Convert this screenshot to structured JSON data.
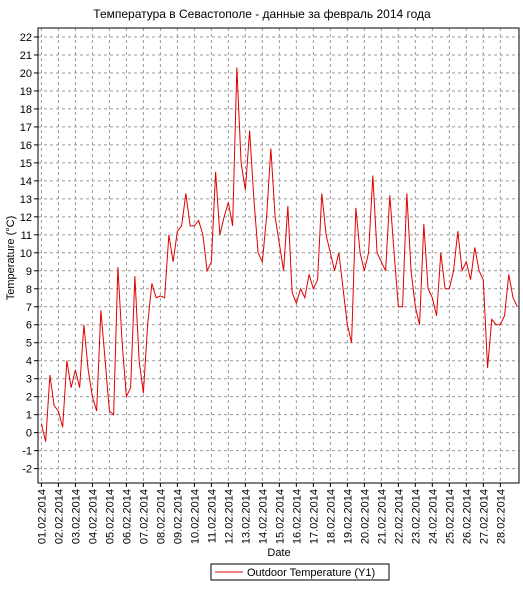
{
  "chart_data": {
    "type": "line",
    "title": "Температура в Севастополе - данные за февраль 2014 года",
    "x_label": "Date",
    "y_label": "Temperature (°C)",
    "x": [
      0,
      0.25,
      0.5,
      0.75,
      1,
      1.25,
      1.5,
      1.75,
      2,
      2.25,
      2.5,
      2.75,
      3,
      3.25,
      3.5,
      3.75,
      4,
      4.25,
      4.5,
      4.75,
      5,
      5.25,
      5.5,
      5.75,
      6,
      6.25,
      6.5,
      6.75,
      7,
      7.25,
      7.5,
      7.75,
      8,
      8.25,
      8.5,
      8.75,
      9,
      9.25,
      9.5,
      9.75,
      10,
      10.25,
      10.5,
      10.75,
      11,
      11.25,
      11.5,
      11.75,
      12,
      12.25,
      12.5,
      12.75,
      13,
      13.25,
      13.5,
      13.75,
      14,
      14.25,
      14.5,
      14.75,
      15,
      15.25,
      15.5,
      15.75,
      16,
      16.25,
      16.5,
      16.75,
      17,
      17.25,
      17.5,
      17.75,
      18,
      18.25,
      18.5,
      18.75,
      19,
      19.25,
      19.5,
      19.75,
      20,
      20.25,
      20.5,
      20.75,
      21,
      21.25,
      21.5,
      21.75,
      22,
      22.25,
      22.5,
      22.75,
      23,
      23.25,
      23.5,
      23.75,
      24,
      24.25,
      24.5,
      24.75,
      25,
      25.25,
      25.5,
      25.75,
      26,
      26.25,
      26.5,
      26.75,
      27,
      27.25,
      27.5,
      27.75,
      28
    ],
    "series": [
      {
        "name": "Outdoor Temperature (Y1)",
        "color": "#e00000",
        "values": [
          0.5,
          -0.5,
          3.2,
          1.5,
          1.2,
          0.3,
          4,
          2.5,
          3.5,
          2.5,
          6,
          3.5,
          2,
          1.2,
          6.8,
          4,
          1.2,
          1,
          9.2,
          5,
          2,
          2.5,
          8.7,
          4,
          2.2,
          6,
          8.3,
          7.5,
          7.6,
          7.5,
          11,
          9.5,
          11.2,
          11.5,
          13.3,
          11.5,
          11.5,
          11.8,
          11,
          9,
          9.5,
          14.5,
          11,
          12,
          12.8,
          11.5,
          20.3,
          15,
          13.5,
          16.8,
          13,
          10,
          9.5,
          12,
          15.8,
          12,
          10.5,
          9,
          12.6,
          7.8,
          7.2,
          8,
          7.5,
          8.8,
          8,
          8.5,
          13.3,
          11,
          10,
          9,
          10,
          8,
          6,
          5,
          12.5,
          10,
          9,
          10,
          14.3,
          10,
          9.5,
          9,
          13.2,
          10,
          7,
          7,
          13.3,
          9,
          7,
          6,
          11.6,
          8,
          7.5,
          6.5,
          10,
          8,
          8,
          9,
          11.2,
          9,
          9.5,
          8.5,
          10.3,
          9,
          8.5,
          3.6,
          6.3,
          6,
          6,
          6.5,
          8.8,
          7.5,
          7
        ]
      }
    ],
    "xlim": [
      -0.2,
      28.1
    ],
    "ylim": [
      -2.8,
      22.5
    ],
    "yticks": [
      -2,
      -1,
      0,
      1,
      2,
      3,
      4,
      5,
      6,
      7,
      8,
      9,
      10,
      11,
      12,
      13,
      14,
      15,
      16,
      17,
      18,
      19,
      20,
      21,
      22
    ],
    "xticks": [
      {
        "value": 0,
        "label": "01.02.2014"
      },
      {
        "value": 1,
        "label": "02.02.2014"
      },
      {
        "value": 2,
        "label": "03.02.2014"
      },
      {
        "value": 3,
        "label": "04.02.2014"
      },
      {
        "value": 4,
        "label": "05.02.2014"
      },
      {
        "value": 5,
        "label": "06.02.2014"
      },
      {
        "value": 6,
        "label": "07.02.2014"
      },
      {
        "value": 7,
        "label": "08.02.2014"
      },
      {
        "value": 8,
        "label": "09.02.2014"
      },
      {
        "value": 9,
        "label": "10.02.2014"
      },
      {
        "value": 10,
        "label": "11.02.2014"
      },
      {
        "value": 11,
        "label": "12.02.2014"
      },
      {
        "value": 12,
        "label": "13.02.2014"
      },
      {
        "value": 13,
        "label": "14.02.2014"
      },
      {
        "value": 14,
        "label": "15.02.2014"
      },
      {
        "value": 15,
        "label": "16.02.2014"
      },
      {
        "value": 16,
        "label": "17.02.2014"
      },
      {
        "value": 17,
        "label": "18.02.2014"
      },
      {
        "value": 18,
        "label": "19.02.2014"
      },
      {
        "value": 19,
        "label": "20.02.2014"
      },
      {
        "value": 20,
        "label": "21.02.2014"
      },
      {
        "value": 21,
        "label": "22.02.2014"
      },
      {
        "value": 22,
        "label": "23.02.2014"
      },
      {
        "value": 23,
        "label": "24.02.2014"
      },
      {
        "value": 24,
        "label": "25.02.2014"
      },
      {
        "value": 25,
        "label": "26.02.2014"
      },
      {
        "value": 26,
        "label": "27.02.2014"
      },
      {
        "value": 27,
        "label": "28.02.2014"
      }
    ],
    "grid": true,
    "legend": "bottom"
  }
}
